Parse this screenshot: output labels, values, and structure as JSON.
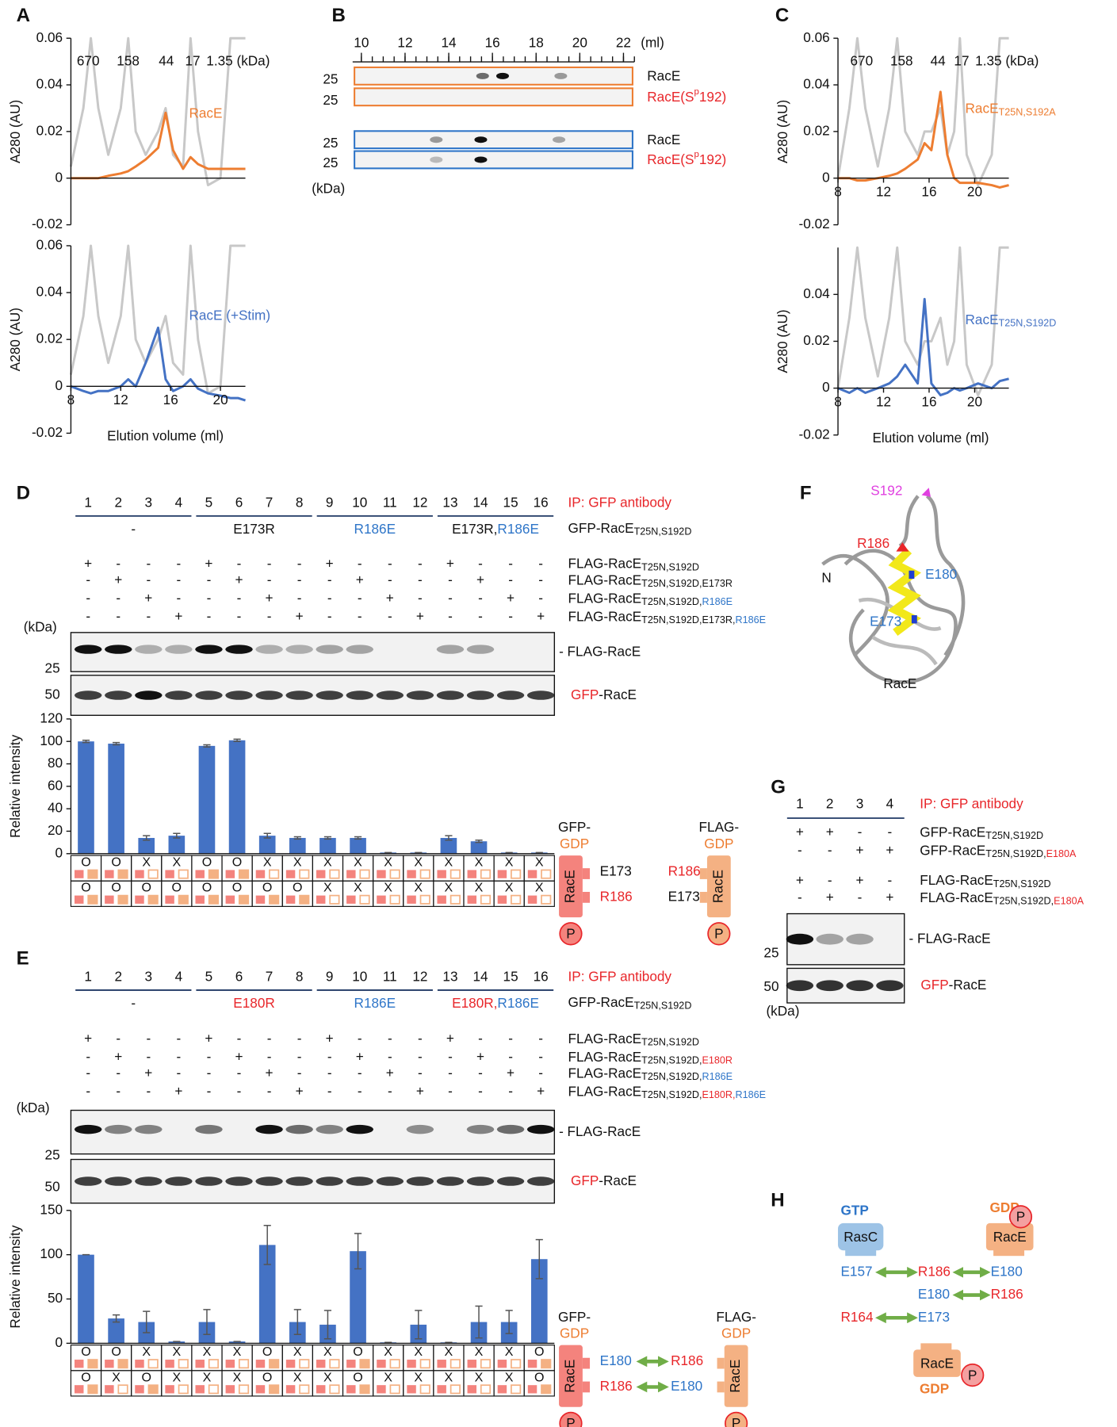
{
  "panel_labels": [
    "A",
    "B",
    "C",
    "D",
    "E",
    "F",
    "G",
    "H"
  ],
  "size_markers": [
    "670",
    "158",
    "44",
    "17",
    "1.35 (kDa)"
  ],
  "chart_data": [
    {
      "type": "line",
      "ylabel": "A280 (AU)",
      "xlim": [
        8,
        22
      ],
      "ylim": [
        -0.02,
        0.06
      ],
      "yticks": [
        -0.02,
        0,
        0.02,
        0.04,
        0.06
      ],
      "x": [
        8,
        9,
        9.6,
        10.2,
        11,
        12,
        12.6,
        13.2,
        14,
        15,
        15.6,
        16.2,
        17,
        17.6,
        18.2,
        19,
        20,
        20.8,
        21.4,
        22
      ],
      "series": [
        {
          "color": "#c8c8c8",
          "values": [
            0.005,
            0.03,
            0.06,
            0.03,
            0.01,
            0.03,
            0.06,
            0.02,
            0.01,
            0.02,
            0.03,
            0.01,
            0.005,
            0.06,
            0.02,
            -0.003,
            0,
            0.06,
            0.06,
            0.06
          ]
        },
        {
          "name": "RacE",
          "color": "#ed7d31",
          "values": [
            0,
            0,
            0,
            0,
            0.001,
            0.002,
            0.003,
            0.005,
            0.008,
            0.013,
            0.028,
            0.012,
            0.004,
            0.009,
            0.006,
            0.004,
            0.004,
            0.004,
            0.004,
            0.004
          ]
        }
      ]
    },
    {
      "type": "line",
      "ylabel": "A280 (AU)",
      "xlabel": "Elution volume (ml)",
      "xlim": [
        8,
        22
      ],
      "ylim": [
        -0.02,
        0.06
      ],
      "yticks": [
        -0.02,
        0,
        0.02,
        0.04,
        0.06
      ],
      "xticks": [
        8,
        12,
        16,
        20
      ],
      "x": [
        8,
        9,
        9.6,
        10.2,
        11,
        12,
        12.6,
        13.2,
        14,
        15,
        15.6,
        16.2,
        17,
        17.6,
        18.2,
        19,
        20,
        20.8,
        21.4,
        22
      ],
      "series": [
        {
          "color": "#c8c8c8",
          "values": [
            0.005,
            0.03,
            0.06,
            0.03,
            0.01,
            0.03,
            0.06,
            0.02,
            0.01,
            0.02,
            0.03,
            0.01,
            0.005,
            0.06,
            0.02,
            -0.003,
            0,
            0.06,
            0.06,
            0.06
          ]
        },
        {
          "name": "RacE (+Stim)",
          "color": "#4472c4",
          "values": [
            0,
            -0.002,
            -0.003,
            -0.002,
            -0.002,
            0,
            0.003,
            0,
            0.01,
            0.025,
            0.003,
            -0.002,
            0,
            0.003,
            -0.001,
            -0.003,
            -0.004,
            -0.005,
            -0.005,
            -0.006
          ]
        }
      ]
    },
    {
      "type": "line",
      "ylabel": "A280 (AU)",
      "xlim": [
        8,
        23
      ],
      "ylim": [
        -0.02,
        0.06
      ],
      "yticks": [
        -0.02,
        0,
        0.02,
        0.04,
        0.06
      ],
      "xticks": [
        8,
        12,
        16,
        20
      ],
      "x": [
        8,
        9,
        9.7,
        10.4,
        11.5,
        12.5,
        13.2,
        13.9,
        15,
        15.6,
        16.2,
        17,
        17.6,
        18.2,
        18.7,
        19.3,
        20.3,
        21.5,
        22.2,
        23
      ],
      "series": [
        {
          "color": "#c8c8c8",
          "values": [
            0,
            0.03,
            0.06,
            0.03,
            0.005,
            0.03,
            0.06,
            0.02,
            0.01,
            0.02,
            0.02,
            0.03,
            0.01,
            0.02,
            0.06,
            0.01,
            -0.003,
            0.01,
            0.06,
            0.06
          ]
        },
        {
          "name": "RacE",
          "subscript": "T25N,S192A",
          "color": "#ed7d31",
          "values": [
            0,
            0,
            -0.001,
            -0.001,
            0,
            0.001,
            0.002,
            0.004,
            0.008,
            0.015,
            0.012,
            0.037,
            0.01,
            0,
            -0.002,
            -0.002,
            -0.002,
            -0.003,
            -0.004,
            -0.003
          ]
        }
      ]
    },
    {
      "type": "line",
      "ylabel": "A280 (AU)",
      "xlabel": "Elution volume (ml)",
      "xlim": [
        8,
        23
      ],
      "ylim": [
        -0.02,
        0.06
      ],
      "yticks": [
        -0.02,
        0,
        0.02,
        0.04
      ],
      "xticks": [
        8,
        12,
        16,
        20
      ],
      "x": [
        8,
        9,
        9.7,
        10.4,
        11.5,
        12.5,
        13.2,
        13.9,
        15,
        15.6,
        16.2,
        17,
        17.6,
        18.2,
        18.7,
        19.3,
        20.3,
        21.5,
        22.2,
        23
      ],
      "series": [
        {
          "color": "#c8c8c8",
          "values": [
            0,
            0.03,
            0.06,
            0.03,
            0.005,
            0.03,
            0.06,
            0.02,
            0.01,
            0.02,
            0.02,
            0.03,
            0.01,
            0.02,
            0.06,
            0.01,
            -0.003,
            0.01,
            0.06,
            0.06
          ]
        },
        {
          "name": "RacE",
          "subscript": "T25N,S192D",
          "color": "#4472c4",
          "values": [
            0,
            -0.002,
            0,
            -0.002,
            0,
            0.002,
            0.005,
            0.01,
            0.002,
            0.038,
            0.002,
            -0.003,
            -0.002,
            0,
            -0.001,
            0,
            0.002,
            0,
            0.003,
            0.004
          ]
        }
      ]
    },
    {
      "type": "bar",
      "ylabel": "Relative intensity",
      "categories": [
        "1",
        "2",
        "3",
        "4",
        "5",
        "6",
        "7",
        "8",
        "9",
        "10",
        "11",
        "12",
        "13",
        "14",
        "15",
        "16"
      ],
      "values": [
        100,
        98,
        14,
        16,
        96,
        101,
        16,
        14,
        14,
        14,
        1,
        1,
        14,
        11,
        1,
        1
      ],
      "errors": [
        1,
        1,
        2,
        2,
        1,
        1,
        2,
        1,
        1,
        1,
        0,
        0,
        2,
        1,
        0,
        0
      ],
      "color": "#4472c4",
      "ylim": [
        0,
        120
      ],
      "yticks": [
        0,
        20,
        40,
        60,
        80,
        100,
        120
      ]
    },
    {
      "type": "bar",
      "ylabel": "Relative intensity",
      "categories": [
        "1",
        "2",
        "3",
        "4",
        "5",
        "6",
        "7",
        "8",
        "9",
        "10",
        "11",
        "12",
        "13",
        "14",
        "15",
        "16"
      ],
      "values": [
        100,
        28,
        24,
        2,
        24,
        2,
        111,
        24,
        21,
        104,
        1,
        21,
        1,
        24,
        24,
        95
      ],
      "errors": [
        0,
        4,
        12,
        0,
        14,
        0,
        22,
        14,
        16,
        20,
        0,
        16,
        0,
        18,
        13,
        22
      ],
      "color": "#4472c4",
      "ylim": [
        0,
        150
      ],
      "yticks": [
        0,
        50,
        100,
        150
      ]
    }
  ],
  "panel_b": {
    "xlim": [
      9.6,
      22.5
    ],
    "xticks": [
      10,
      12,
      14,
      16,
      18,
      20,
      22
    ],
    "unit": "(ml)",
    "lanes": [
      [
        "RacE"
      ],
      [
        "RacE(S",
        "p",
        "192)"
      ],
      [
        "RacE"
      ],
      [
        "RacE(S",
        "p",
        "192)"
      ]
    ],
    "markers": [
      "25",
      "25",
      "25",
      "25"
    ],
    "kda": "(kDa)"
  },
  "panel_d": {
    "ip": "IP: GFP antibody",
    "groups": [
      [
        "-"
      ],
      [
        "E173R"
      ],
      [
        "R186E"
      ],
      [
        "E173R,",
        "R186E"
      ]
    ],
    "gfp_label": [
      "GFP-RacE",
      "T25N,S192D"
    ],
    "signs": [
      [
        "+",
        "-",
        "-",
        "-",
        "+",
        "-",
        "-",
        "-",
        "+",
        "-",
        "-",
        "-",
        "+",
        "-",
        "-",
        "-"
      ],
      [
        "-",
        "+",
        "-",
        "-",
        "-",
        "+",
        "-",
        "-",
        "-",
        "+",
        "-",
        "-",
        "-",
        "+",
        "-",
        "-"
      ],
      [
        "-",
        "-",
        "+",
        "-",
        "-",
        "-",
        "+",
        "-",
        "-",
        "-",
        "+",
        "-",
        "-",
        "-",
        "+",
        "-"
      ],
      [
        "-",
        "-",
        "-",
        "+",
        "-",
        "-",
        "-",
        "+",
        "-",
        "-",
        "-",
        "+",
        "-",
        "-",
        "-",
        "+"
      ]
    ],
    "flag_labels": [
      [
        "FLAG-RacE",
        "T25N,S192D"
      ],
      [
        "FLAG-RacE",
        "T25N,S192D,E173R"
      ],
      [
        "FLAG-RacE",
        "T25N,S192D,",
        "R186E"
      ],
      [
        "FLAG-RacE",
        "T25N,S192D,E173R,",
        "R186E"
      ]
    ],
    "kda": "(kDa)",
    "markers": [
      "25",
      "50"
    ],
    "blot_labels": [
      [
        "- FLAG-RacE"
      ],
      [
        "GFP",
        "-RacE"
      ]
    ],
    "table": [
      [
        "O",
        "O",
        "X",
        "X",
        "O",
        "O",
        "X",
        "X",
        "X",
        "X",
        "X",
        "X",
        "X",
        "X",
        "X",
        "X"
      ],
      [
        "O",
        "O",
        "O",
        "O",
        "O",
        "O",
        "O",
        "O",
        "X",
        "X",
        "X",
        "X",
        "X",
        "X",
        "X",
        "X"
      ]
    ],
    "legend": {
      "gfp": [
        "GFP-",
        "GDP"
      ],
      "flag": [
        "FLAG-",
        "GDP"
      ],
      "sites": [
        [
          "E173",
          "R186"
        ],
        [
          "R186",
          "E173"
        ]
      ],
      "protein": "RacE",
      "p": "P"
    }
  },
  "panel_e": {
    "ip": "IP: GFP antibody",
    "groups": [
      [
        "-"
      ],
      [
        "E180R"
      ],
      [
        "R186E"
      ],
      [
        "E180R,",
        "R186E"
      ]
    ],
    "gfp_label": [
      "GFP-RacE",
      "T25N,S192D"
    ],
    "signs": [
      [
        "+",
        "-",
        "-",
        "-",
        "+",
        "-",
        "-",
        "-",
        "+",
        "-",
        "-",
        "-",
        "+",
        "-",
        "-",
        "-"
      ],
      [
        "-",
        "+",
        "-",
        "-",
        "-",
        "+",
        "-",
        "-",
        "-",
        "+",
        "-",
        "-",
        "-",
        "+",
        "-",
        "-"
      ],
      [
        "-",
        "-",
        "+",
        "-",
        "-",
        "-",
        "+",
        "-",
        "-",
        "-",
        "+",
        "-",
        "-",
        "-",
        "+",
        "-"
      ],
      [
        "-",
        "-",
        "-",
        "+",
        "-",
        "-",
        "-",
        "+",
        "-",
        "-",
        "-",
        "+",
        "-",
        "-",
        "-",
        "+"
      ]
    ],
    "flag_labels": [
      [
        "FLAG-RacE",
        "T25N,S192D"
      ],
      [
        "FLAG-RacE",
        "T25N,S192D,",
        "E180R"
      ],
      [
        "FLAG-RacE",
        "T25N,S192D,",
        "R186E"
      ],
      [
        "FLAG-RacE",
        "T25N,S192D,",
        "E180R,",
        "R186E"
      ]
    ],
    "kda": "(kDa)",
    "markers": [
      "25",
      "50"
    ],
    "blot_labels": [
      [
        "- FLAG-RacE"
      ],
      [
        "GFP",
        "-RacE"
      ]
    ],
    "table": [
      [
        "O",
        "O",
        "X",
        "X",
        "X",
        "X",
        "O",
        "X",
        "X",
        "O",
        "X",
        "X",
        "X",
        "X",
        "X",
        "O"
      ],
      [
        "O",
        "X",
        "O",
        "X",
        "X",
        "X",
        "O",
        "X",
        "X",
        "O",
        "X",
        "X",
        "X",
        "X",
        "X",
        "O"
      ]
    ],
    "legend": {
      "gfp": [
        "GFP-",
        "GDP"
      ],
      "flag": [
        "FLAG-",
        "GDP"
      ],
      "sites": [
        [
          "E180",
          "R186"
        ],
        [
          "R186",
          "E180"
        ]
      ],
      "protein": "RacE",
      "p": "P"
    }
  },
  "panel_f": {
    "labels": [
      "S192",
      "R186",
      "N",
      "E180",
      "E173",
      "RacE"
    ]
  },
  "panel_g": {
    "lanes": [
      "1",
      "2",
      "3",
      "4"
    ],
    "ip": "IP: GFP antibody",
    "signs": [
      [
        "+",
        "+",
        "-",
        "-"
      ],
      [
        "-",
        "-",
        "+",
        "+"
      ],
      [
        "+",
        "-",
        "+",
        "-"
      ],
      [
        "-",
        "+",
        "-",
        "+"
      ]
    ],
    "labels": [
      [
        "GFP-RacE",
        "T25N,S192D"
      ],
      [
        "GFP-RacE",
        "T25N,S192D,",
        "E180A"
      ],
      [
        "FLAG-RacE",
        "T25N,S192D"
      ],
      [
        "FLAG-RacE",
        "T25N,S192D,",
        "E180A"
      ]
    ],
    "markers": [
      "25",
      "50"
    ],
    "blot_labels": [
      [
        "- FLAG-RacE"
      ],
      [
        "GFP",
        "-RacE"
      ]
    ],
    "kda": "(kDa)"
  },
  "panel_h": {
    "gtp": "GTP",
    "rasc": "RasC",
    "gdp_top": "GDP",
    "race_top": "RacE",
    "p": "P",
    "rows": [
      [
        "E157",
        "R186",
        "E180"
      ],
      [
        "E180",
        "R186"
      ],
      [
        "R164",
        "E173"
      ]
    ],
    "gdp_bottom": "GDP",
    "race_bottom": "RacE"
  }
}
